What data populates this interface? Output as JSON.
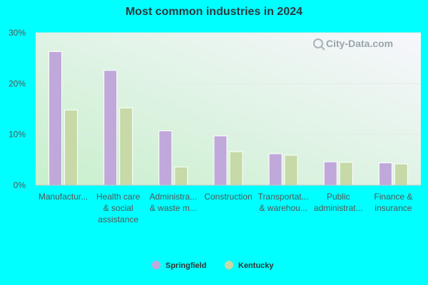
{
  "chart_data": {
    "type": "bar",
    "title": "Most common industries in 2024",
    "categories": [
      [
        "Manufactur..."
      ],
      [
        "Health care",
        "& social",
        "assistance"
      ],
      [
        "Administra...",
        "& waste m..."
      ],
      [
        "Construction"
      ],
      [
        "Transportat...",
        "& warehou..."
      ],
      [
        "Public",
        "administrat..."
      ],
      [
        "Finance &",
        "insurance"
      ]
    ],
    "series": [
      {
        "name": "Springfield",
        "color": "#c0a8da",
        "values": [
          26.3,
          22.6,
          10.7,
          9.7,
          6.2,
          4.6,
          4.4
        ]
      },
      {
        "name": "Kentucky",
        "color": "#c6d9a7",
        "values": [
          14.8,
          15.2,
          3.6,
          6.6,
          5.9,
          4.5,
          4.2
        ]
      }
    ],
    "ylim": [
      0,
      30
    ],
    "yticks": [
      "0%",
      "10%",
      "20%",
      "30%"
    ],
    "ytick_values": [
      0,
      10,
      20,
      30
    ],
    "grid": true,
    "legend_position": "bottom-center",
    "watermark": "City-Data.com"
  }
}
